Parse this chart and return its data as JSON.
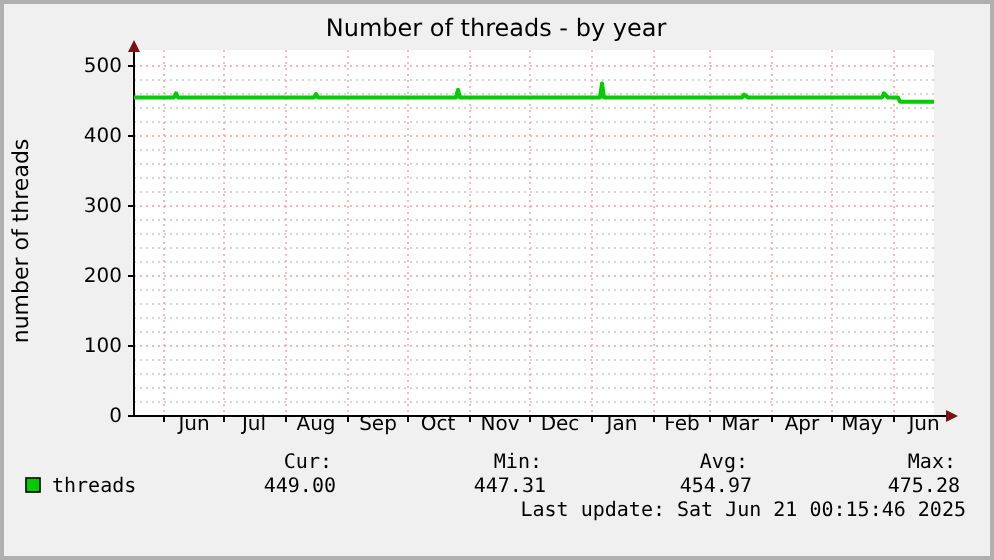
{
  "chart_data": {
    "type": "line",
    "title": "Number of threads - by year",
    "ylabel": "number of threads",
    "x": [
      "2024-05-17",
      "2024-06-06",
      "2024-06-07",
      "2024-06-08",
      "2024-08-15",
      "2024-08-16",
      "2024-08-17",
      "2024-10-25",
      "2024-10-26",
      "2024-10-27",
      "2025-01-05",
      "2025-01-06",
      "2025-01-07",
      "2025-03-17",
      "2025-03-18",
      "2025-03-20",
      "2025-05-26",
      "2025-05-27",
      "2025-05-29",
      "2025-06-03",
      "2025-06-04",
      "2025-06-21"
    ],
    "series": [
      {
        "name": "threads",
        "color": "#00cc00",
        "values": [
          455,
          455,
          461,
          455,
          455,
          460,
          455,
          455,
          466,
          455,
          455,
          475,
          455,
          455,
          459,
          455,
          455,
          461,
          455,
          455,
          449,
          449
        ]
      }
    ],
    "xlim": [
      "2024-05-17",
      "2025-06-21"
    ],
    "xticks": [
      {
        "value": "2024-06-01",
        "label": null
      },
      {
        "value": "2024-06-16",
        "label": "Jun"
      },
      {
        "value": "2024-07-01",
        "label": null
      },
      {
        "value": "2024-07-16",
        "label": "Jul"
      },
      {
        "value": "2024-08-01",
        "label": null
      },
      {
        "value": "2024-08-16",
        "label": "Aug"
      },
      {
        "value": "2024-09-01",
        "label": null
      },
      {
        "value": "2024-09-16",
        "label": "Sep"
      },
      {
        "value": "2024-10-01",
        "label": null
      },
      {
        "value": "2024-10-16",
        "label": "Oct"
      },
      {
        "value": "2024-11-01",
        "label": null
      },
      {
        "value": "2024-11-16",
        "label": "Nov"
      },
      {
        "value": "2024-12-01",
        "label": null
      },
      {
        "value": "2024-12-16",
        "label": "Dec"
      },
      {
        "value": "2025-01-01",
        "label": null
      },
      {
        "value": "2025-01-16",
        "label": "Jan"
      },
      {
        "value": "2025-02-01",
        "label": null
      },
      {
        "value": "2025-02-15",
        "label": "Feb"
      },
      {
        "value": "2025-03-01",
        "label": null
      },
      {
        "value": "2025-03-16",
        "label": "Mar"
      },
      {
        "value": "2025-04-01",
        "label": null
      },
      {
        "value": "2025-04-16",
        "label": "Apr"
      },
      {
        "value": "2025-05-01",
        "label": null
      },
      {
        "value": "2025-05-16",
        "label": "May"
      },
      {
        "value": "2025-06-01",
        "label": null
      },
      {
        "value": "2025-06-16",
        "label": "Jun"
      }
    ],
    "ylim": [
      0,
      500
    ],
    "yticks": [
      0,
      {
        "value": 20,
        "label": null
      },
      {
        "value": 40,
        "label": null
      },
      {
        "value": 60,
        "label": null
      },
      {
        "value": 80,
        "label": null
      },
      100,
      {
        "value": 120,
        "label": null
      },
      {
        "value": 140,
        "label": null
      },
      {
        "value": 160,
        "label": null
      },
      {
        "value": 180,
        "label": null
      },
      200,
      {
        "value": 220,
        "label": null
      },
      {
        "value": 240,
        "label": null
      },
      {
        "value": 260,
        "label": null
      },
      {
        "value": 280,
        "label": null
      },
      300,
      {
        "value": 320,
        "label": null
      },
      {
        "value": 340,
        "label": null
      },
      {
        "value": 360,
        "label": null
      },
      {
        "value": 380,
        "label": null
      },
      400,
      {
        "value": 420,
        "label": null
      },
      {
        "value": 440,
        "label": null
      },
      {
        "value": 460,
        "label": null
      },
      {
        "value": 480,
        "label": null
      },
      500
    ],
    "grid": true,
    "legend": "bottom left",
    "marker": "none",
    "line_style": "solid",
    "annotations": [
      "Cur:",
      "Min:",
      "Avg:",
      "Max:",
      "449.00",
      "447.31",
      "454.97",
      "475.28",
      "Last update: Sat Jun 21 00:15:46 2025"
    ]
  }
}
